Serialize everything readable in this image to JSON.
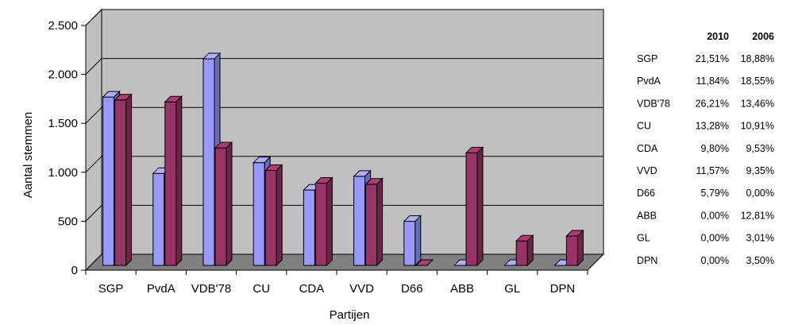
{
  "chart_data": {
    "type": "bar",
    "title": "",
    "xlabel": "Partijen",
    "ylabel": "Aantal stemmen",
    "ylim": [
      0,
      2500
    ],
    "yticks": [
      0,
      500,
      1000,
      1500,
      2000,
      2500
    ],
    "ytick_labels": [
      "0",
      "500",
      "1.000",
      "1.500",
      "2.000",
      "2.500"
    ],
    "categories": [
      "SGP",
      "PvdA",
      "VDB'78",
      "CU",
      "CDA",
      "VVD",
      "D66",
      "ABB",
      "GL",
      "DPN"
    ],
    "series": [
      {
        "name": "2010",
        "color": "#9999ff",
        "values": [
          1720,
          940,
          2110,
          1050,
          770,
          910,
          450,
          0,
          0,
          0
        ]
      },
      {
        "name": "2006",
        "color": "#993366",
        "values": [
          1690,
          1670,
          1200,
          970,
          840,
          830,
          0,
          1150,
          250,
          300
        ]
      }
    ],
    "grid": true,
    "style": "3d",
    "wall_color": "#c0c0c0",
    "floor_color": "#808080"
  },
  "table": {
    "headers": [
      "2010",
      "2006"
    ],
    "rows": [
      {
        "party": "SGP",
        "v2010": "21,51%",
        "v2006": "18,88%"
      },
      {
        "party": "PvdA",
        "v2010": "11,84%",
        "v2006": "18,55%"
      },
      {
        "party": "VDB'78",
        "v2010": "26,21%",
        "v2006": "13,46%"
      },
      {
        "party": "CU",
        "v2010": "13,28%",
        "v2006": "10,91%"
      },
      {
        "party": "CDA",
        "v2010": "9,80%",
        "v2006": "9,53%"
      },
      {
        "party": "VVD",
        "v2010": "11,57%",
        "v2006": "9,35%"
      },
      {
        "party": "D66",
        "v2010": "5,79%",
        "v2006": "0,00%"
      },
      {
        "party": "ABB",
        "v2010": "0,00%",
        "v2006": "12,81%"
      },
      {
        "party": "GL",
        "v2010": "0,00%",
        "v2006": "3,01%"
      },
      {
        "party": "DPN",
        "v2010": "0,00%",
        "v2006": "3,50%"
      }
    ]
  }
}
